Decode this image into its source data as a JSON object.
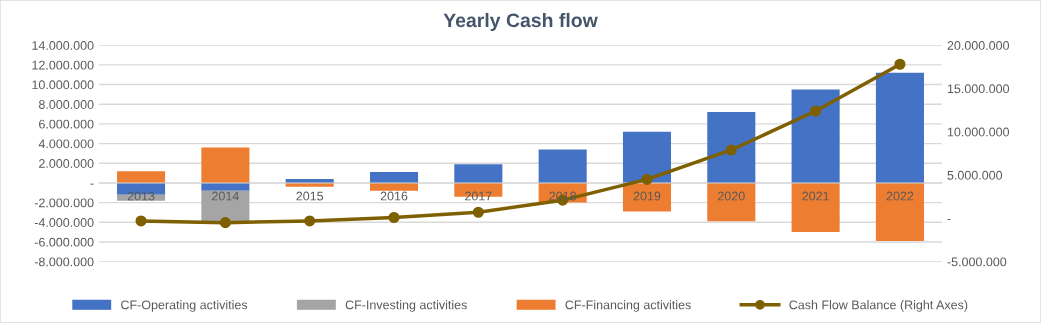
{
  "chart_data": {
    "type": "bar",
    "title": "Yearly Cash flow",
    "stacked": true,
    "categories": [
      "2013",
      "2014",
      "2015",
      "2016",
      "2017",
      "2018",
      "2019",
      "2020",
      "2021",
      "2022"
    ],
    "series": [
      {
        "name": "CF-Operating activities",
        "color": "#4472c4",
        "values": [
          -1200000,
          -800000,
          400000,
          1100000,
          1900000,
          3400000,
          5200000,
          7200000,
          9500000,
          11200000
        ]
      },
      {
        "name": "CF-Investing activities",
        "color": "#a5a5a5",
        "values": [
          -600000,
          -3100000,
          0,
          0,
          0,
          0,
          0,
          0,
          0,
          0
        ]
      },
      {
        "name": "CF-Financing activities",
        "color": "#ed7d31",
        "values": [
          1200000,
          3600000,
          -400000,
          -800000,
          -1400000,
          -2000000,
          -2900000,
          -3900000,
          -5000000,
          -5900000
        ]
      },
      {
        "name": "Cash Flow Balance (Right Axes)",
        "type": "line",
        "axis": "y2",
        "color": "#7f6000",
        "marker": "circle",
        "values": [
          -300000,
          -500000,
          -300000,
          100000,
          700000,
          2100000,
          4500000,
          7900000,
          12400000,
          17800000
        ]
      }
    ],
    "ylim": [
      -8000000,
      14000000
    ],
    "yticks": [
      {
        "value": -8000000,
        "label": "-8.000.000"
      },
      {
        "value": -6000000,
        "label": "-6.000.000"
      },
      {
        "value": -4000000,
        "label": "-4.000.000"
      },
      {
        "value": -2000000,
        "label": "-2.000.000"
      },
      {
        "value": 0,
        "label": "-"
      },
      {
        "value": 2000000,
        "label": "2.000.000"
      },
      {
        "value": 4000000,
        "label": "4.000.000"
      },
      {
        "value": 6000000,
        "label": "6.000.000"
      },
      {
        "value": 8000000,
        "label": "8.000.000"
      },
      {
        "value": 10000000,
        "label": "10.000.000"
      },
      {
        "value": 12000000,
        "label": "12.000.000"
      },
      {
        "value": 14000000,
        "label": "14.000.000"
      }
    ],
    "y2lim": [
      -5000000,
      20000000
    ],
    "y2ticks": [
      {
        "value": -5000000,
        "label": "-5.000.000"
      },
      {
        "value": 0,
        "label": "-"
      },
      {
        "value": 5000000,
        "label": "5.000.000"
      },
      {
        "value": 10000000,
        "label": "10.000.000"
      },
      {
        "value": 15000000,
        "label": "15.000.000"
      },
      {
        "value": 20000000,
        "label": "20.000.000"
      }
    ],
    "grid": "y",
    "legend": "bottom"
  }
}
